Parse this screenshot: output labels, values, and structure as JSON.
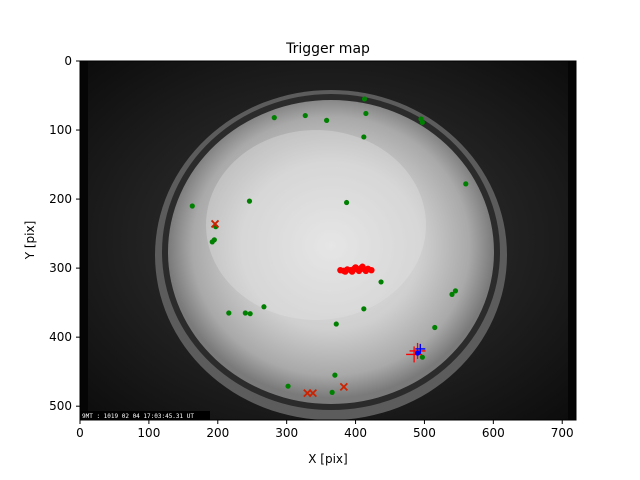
{
  "chart_data": {
    "type": "scatter",
    "title": "Trigger map",
    "xlabel": "X [pix]",
    "ylabel": "Y [pix]",
    "xlim": [
      0,
      720
    ],
    "ylim": [
      520,
      0
    ],
    "y_inverted": true,
    "xticks": [
      "0",
      "100",
      "200",
      "300",
      "400",
      "500",
      "600",
      "700"
    ],
    "yticks": [
      "0",
      "100",
      "200",
      "300",
      "400",
      "500"
    ],
    "background": "grayscale all-sky camera image",
    "image_timestamp": "9MT : 1019 02 04 17:03:45.31 UT",
    "series": [
      {
        "marker": "dot",
        "color": "#008000",
        "points": [
          [
            413,
            55
          ],
          [
            415,
            76
          ],
          [
            282,
            82
          ],
          [
            327,
            79
          ],
          [
            358,
            86
          ],
          [
            495,
            84
          ],
          [
            497,
            89
          ],
          [
            412,
            110
          ],
          [
            560,
            178
          ],
          [
            163,
            210
          ],
          [
            246,
            203
          ],
          [
            387,
            205
          ],
          [
            197,
            240
          ],
          [
            195,
            259
          ],
          [
            192,
            262
          ],
          [
            437,
            320
          ],
          [
            545,
            333
          ],
          [
            540,
            338
          ],
          [
            412,
            359
          ],
          [
            267,
            356
          ],
          [
            216,
            365
          ],
          [
            240,
            365
          ],
          [
            247,
            366
          ],
          [
            372,
            381
          ],
          [
            515,
            386
          ],
          [
            497,
            429
          ],
          [
            370,
            455
          ],
          [
            302,
            471
          ],
          [
            366,
            480
          ]
        ]
      },
      {
        "marker": "x",
        "color": "#cc2200",
        "points": [
          [
            196,
            236
          ],
          [
            330,
            481
          ],
          [
            338,
            481
          ],
          [
            383,
            472
          ]
        ]
      },
      {
        "marker": "cross",
        "color": "#ff0000",
        "points": [
          [
            485,
            425
          ],
          [
            490,
            420
          ]
        ]
      },
      {
        "marker": "dot",
        "color": "#ff0000",
        "points": [
          [
            378,
            303
          ],
          [
            383,
            304
          ],
          [
            388,
            302
          ],
          [
            393,
            303
          ],
          [
            398,
            301
          ],
          [
            403,
            302
          ],
          [
            408,
            300
          ],
          [
            413,
            302
          ],
          [
            418,
            301
          ],
          [
            423,
            303
          ],
          [
            385,
            305
          ],
          [
            395,
            305
          ],
          [
            405,
            304
          ],
          [
            415,
            304
          ],
          [
            400,
            299
          ],
          [
            410,
            298
          ]
        ]
      },
      {
        "marker": "dot",
        "color": "#0000ff",
        "points": [
          [
            490,
            423
          ]
        ]
      },
      {
        "marker": "plus",
        "color": "#0000ff",
        "points": [
          [
            494,
            417
          ]
        ]
      }
    ]
  }
}
